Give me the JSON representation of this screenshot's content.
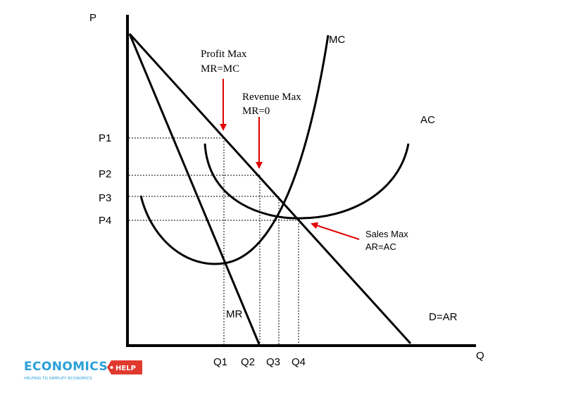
{
  "axes": {
    "y_label": "P",
    "x_label": "Q"
  },
  "price_levels": [
    "P1",
    "P2",
    "P3",
    "P4"
  ],
  "quantity_levels": [
    "Q1",
    "Q2",
    "Q3",
    "Q4"
  ],
  "curves": {
    "mc": "MC",
    "ac": "AC",
    "mr": "MR",
    "demand": "D=AR"
  },
  "annotations": {
    "profit_max": {
      "line1": "Profit Max",
      "line2": "MR=MC"
    },
    "revenue_max": {
      "line1": "Revenue Max",
      "line2": "MR=0"
    },
    "sales_max": {
      "line1": "Sales Max",
      "line2": "AR=AC"
    }
  },
  "logo": {
    "word": "ECONOMICS",
    "badge": "HELP",
    "tagline": "HELPING TO SIMPLIFY ECONOMICS"
  },
  "colors": {
    "arrow": "#e00000",
    "lines": "#000000",
    "logo_blue": "#2a9fd8",
    "logo_red": "#e03a2f"
  }
}
